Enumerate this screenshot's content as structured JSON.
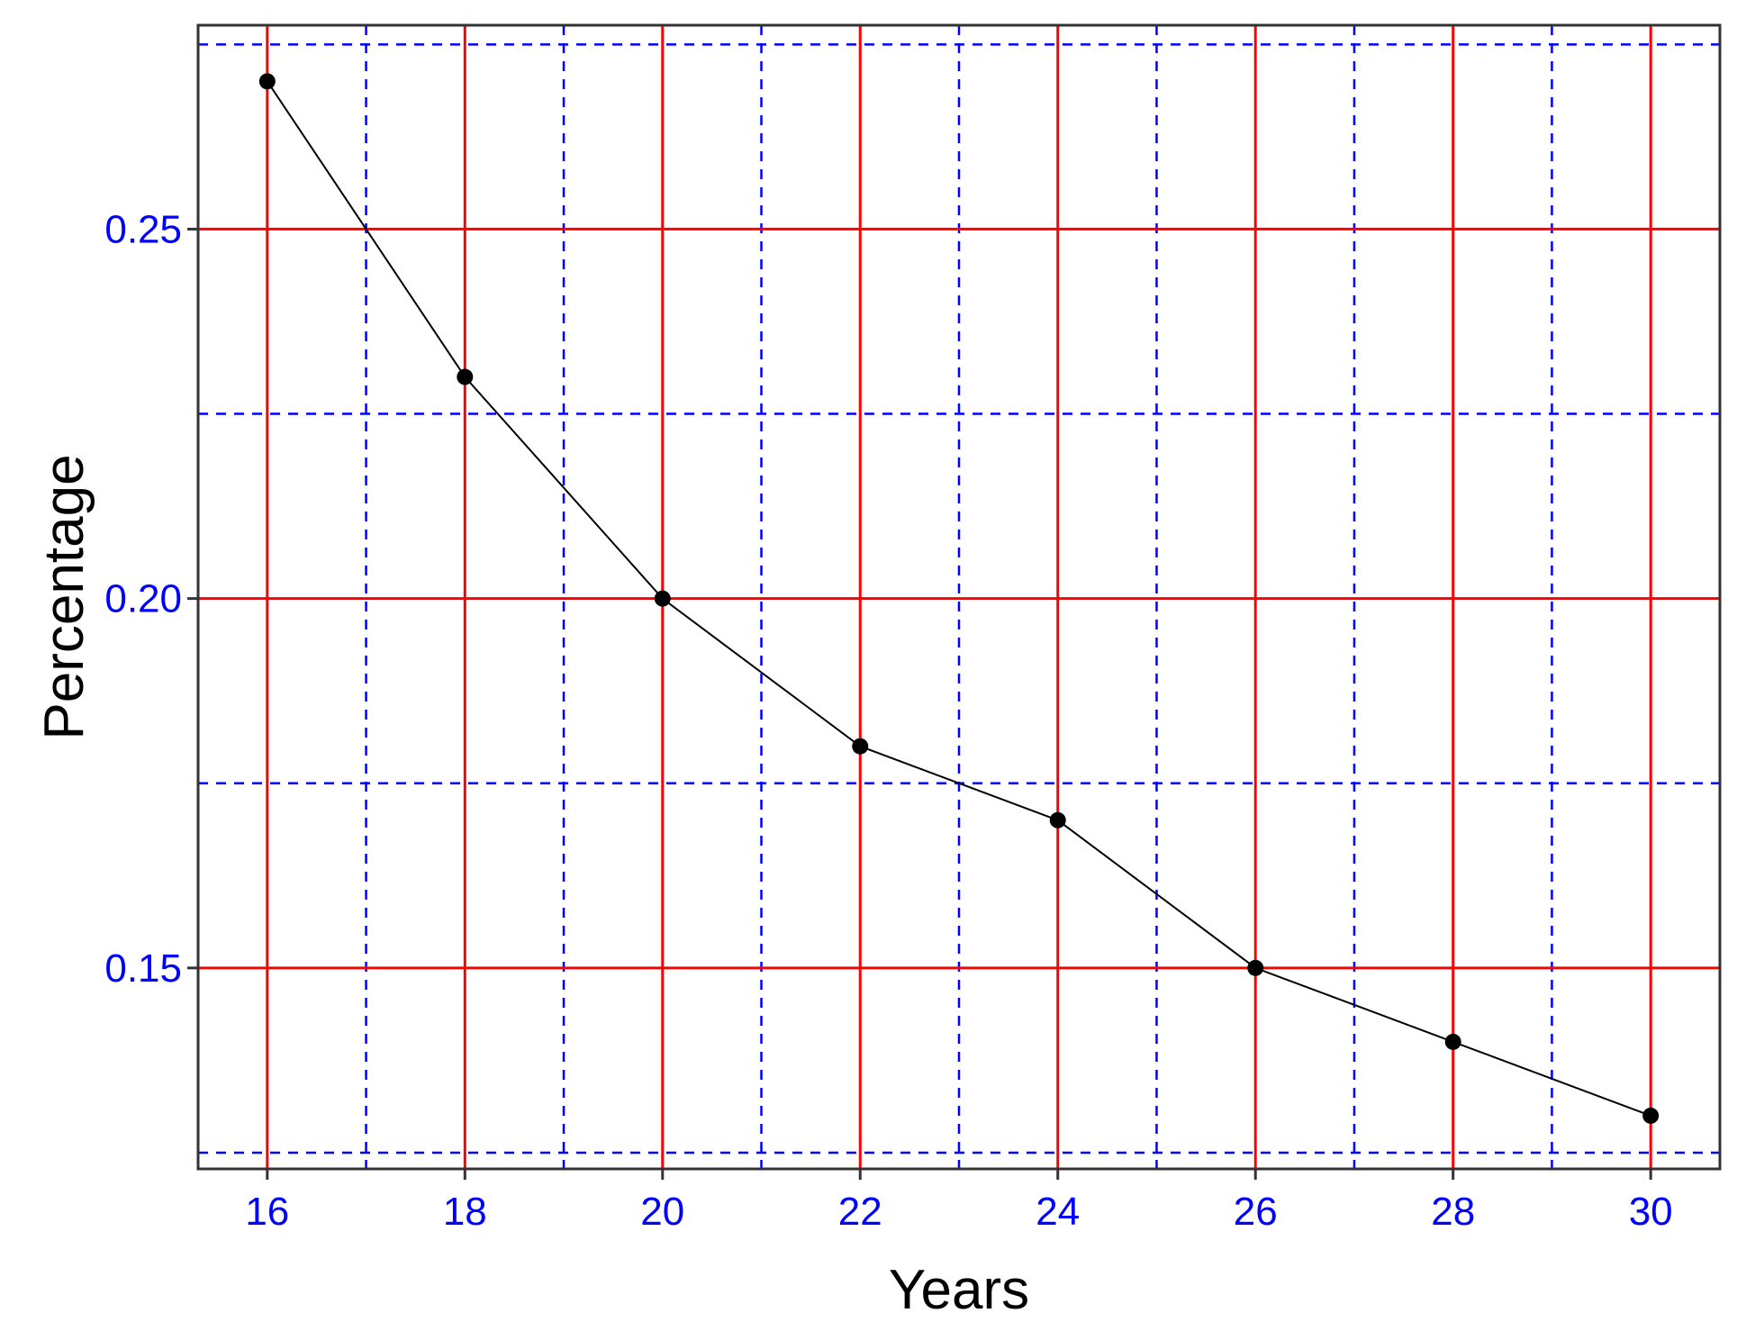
{
  "chart_data": {
    "type": "line",
    "title": "",
    "xlabel": "Years",
    "ylabel": "Percentage",
    "x": [
      16,
      18,
      20,
      22,
      24,
      26,
      28,
      30
    ],
    "series": [
      {
        "values": [
          0.27,
          0.23,
          0.2,
          0.18,
          0.17,
          0.15,
          0.14,
          0.13
        ]
      }
    ],
    "xlim": [
      15.3,
      30.7
    ],
    "ylim": [
      0.1228,
      0.2776
    ],
    "x_ticks": [
      16,
      18,
      20,
      22,
      24,
      26,
      28,
      30
    ],
    "x_tick_labels": [
      "16",
      "18",
      "20",
      "22",
      "24",
      "26",
      "28",
      "30"
    ],
    "y_ticks": [
      0.15,
      0.2,
      0.25
    ],
    "y_tick_labels": [
      "0.15",
      "0.20",
      "0.25"
    ],
    "x_minor_grid": [
      17,
      19,
      21,
      23,
      25,
      27,
      29
    ],
    "y_minor_grid": [
      0.125,
      0.175,
      0.225,
      0.275
    ],
    "grid": true,
    "legend": "none",
    "colors": {
      "line": "#000000",
      "marker": "#000000",
      "major_grid": "#ff0000",
      "minor_grid": "#0000ff",
      "tick_label": "#0000ff",
      "axis_title": "#000000",
      "border": "#333333"
    }
  }
}
